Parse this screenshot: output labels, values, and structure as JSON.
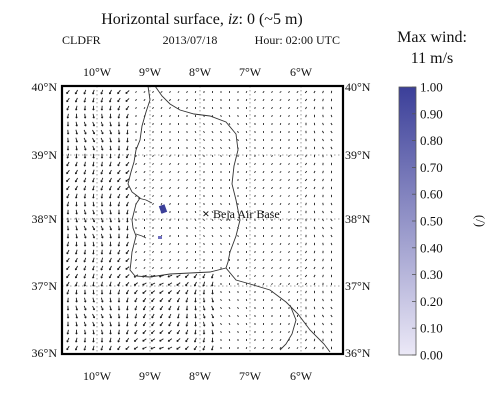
{
  "title": {
    "prefix": "Horizontal surface, ",
    "var": "iz",
    "suffix": ": 0 (~5 m)"
  },
  "subtitle": {
    "model": "CLDFR",
    "date": "2013/07/18",
    "hour": "Hour: 02:00 UTC"
  },
  "map": {
    "lon_labels": [
      "10°W",
      "9°W",
      "8°W",
      "7°W",
      "6°W"
    ],
    "lat_labels": [
      "40°N",
      "39°N",
      "38°N",
      "37°N",
      "36°N"
    ],
    "site_marker": "×",
    "site_label": "Beja Air Base"
  },
  "colorbar": {
    "title_line1": "Max wind:",
    "title_line2": "11 m/s",
    "unit": "(/)",
    "ticks": [
      "1.00",
      "0.90",
      "0.80",
      "0.70",
      "0.60",
      "0.50",
      "0.40",
      "0.30",
      "0.20",
      "0.10",
      "0.00"
    ],
    "color_low": "#ece9f7",
    "color_high": "#3b3f99"
  },
  "colors": {
    "frame": "#000000",
    "arrows": "#1a1a1a",
    "coast": "#333333",
    "grid": "#888888"
  }
}
